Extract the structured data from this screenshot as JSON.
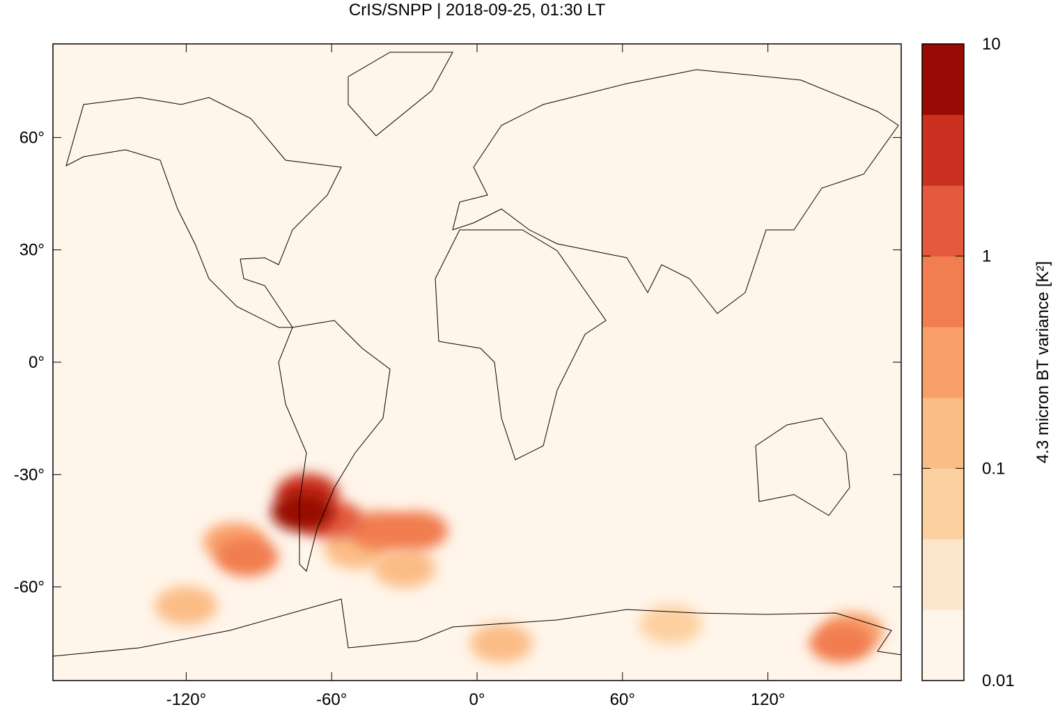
{
  "chart_data": {
    "type": "map",
    "title": "CrIS/SNPP | 2018-09-25, 01:30 LT",
    "colorbar_label": "4.3 micron BT variance [K²]",
    "xlim": [
      -175,
      175
    ],
    "ylim": [
      -85,
      85
    ],
    "xticks": [
      {
        "value": -120,
        "label": "-120°"
      },
      {
        "value": -60,
        "label": "-60°"
      },
      {
        "value": 0,
        "label": "0°"
      },
      {
        "value": 60,
        "label": "60°"
      },
      {
        "value": 120,
        "label": "120°"
      }
    ],
    "yticks": [
      {
        "value": -60,
        "label": "-60°"
      },
      {
        "value": -30,
        "label": "-30°"
      },
      {
        "value": 0,
        "label": "0°"
      },
      {
        "value": 30,
        "label": "30°"
      },
      {
        "value": 60,
        "label": "60°"
      }
    ],
    "clim": [
      0.01,
      10
    ],
    "clog": true,
    "cticks": [
      0.01,
      0.1,
      1,
      10
    ],
    "colors": [
      "#fff5ea",
      "#fde7cc",
      "#fdd09f",
      "#fbbd86",
      "#f9a06a",
      "#f17d50",
      "#e35a3e",
      "#c9301f",
      "#990a05"
    ],
    "hotspots": {
      "x": [
        -120,
        80,
        10,
        -30,
        -50,
        155,
        -100,
        -25,
        -95,
        150,
        -40,
        -60,
        -70,
        -72
      ],
      "y": [
        -65,
        -70,
        -75,
        -55,
        -50,
        -72,
        -48,
        -45,
        -52,
        -75,
        -45,
        -42,
        -35,
        -40
      ],
      "values": [
        0.1,
        0.08,
        0.1,
        0.15,
        0.2,
        0.3,
        0.3,
        0.5,
        0.5,
        0.5,
        0.7,
        1,
        3,
        8
      ]
    }
  }
}
